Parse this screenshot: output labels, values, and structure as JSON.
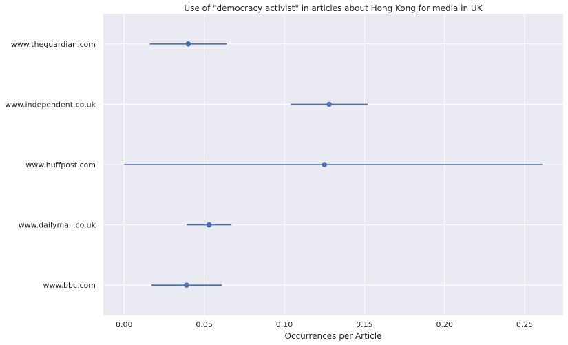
{
  "chart_data": {
    "type": "scatter",
    "title": "Use of \"democracy activist\" in articles about Hong Kong for media in UK",
    "xlabel": "Occurrences per Article",
    "ylabel": "",
    "xlim": [
      -0.013,
      0.274
    ],
    "x_ticks": [
      "0.00",
      "0.05",
      "0.10",
      "0.15",
      "0.20",
      "0.25"
    ],
    "x_tick_values": [
      0.0,
      0.05,
      0.1,
      0.15,
      0.2,
      0.25
    ],
    "grid": true,
    "point_color": "#4c72b0",
    "background_color": "#eaeaf2",
    "categories": [
      "www.theguardian.com",
      "www.independent.co.uk",
      "www.huffpost.com",
      "www.dailymail.co.uk",
      "www.bbc.com"
    ],
    "values": [
      0.04,
      0.128,
      0.125,
      0.053,
      0.039
    ],
    "ci_low": [
      0.016,
      0.104,
      0.0,
      0.039,
      0.017
    ],
    "ci_high": [
      0.064,
      0.152,
      0.261,
      0.067,
      0.061
    ]
  }
}
